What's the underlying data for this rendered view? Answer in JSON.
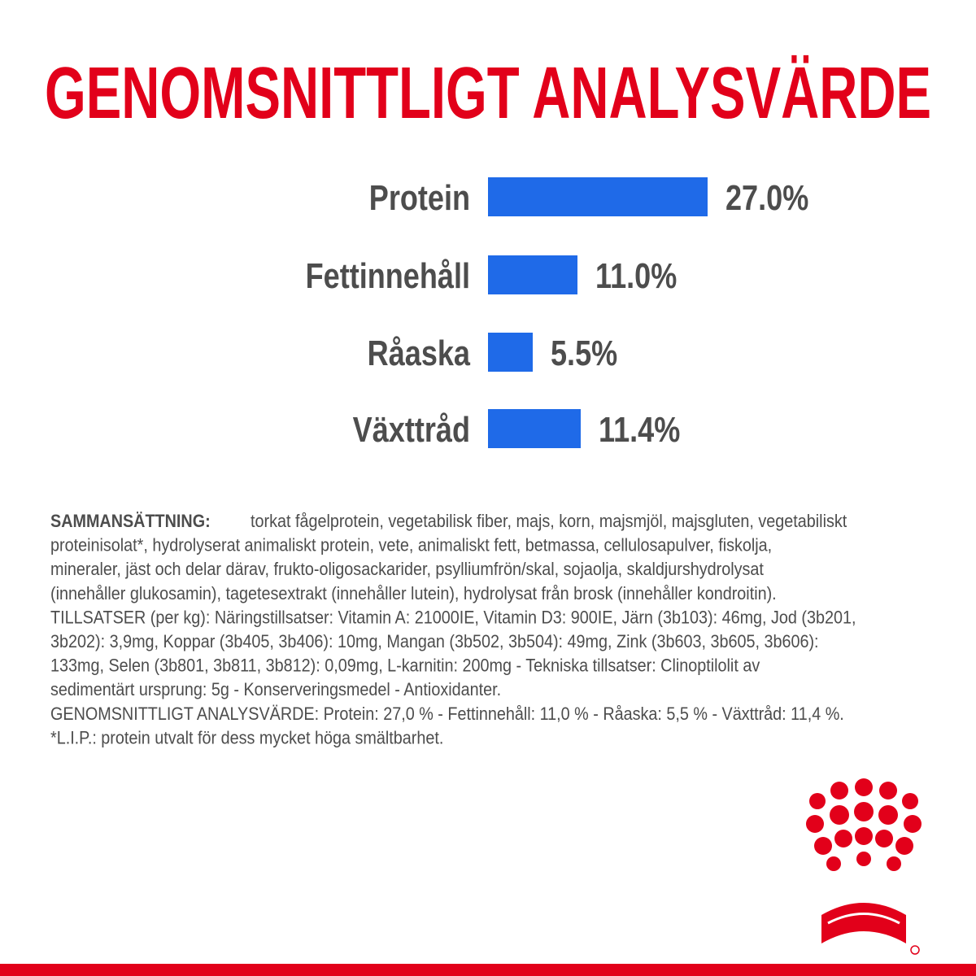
{
  "chart_data": {
    "type": "bar",
    "title": "GENOMSNITTLIGT ANALYSVÄRDE",
    "categories": [
      "Protein",
      "Fettinnehåll",
      "Råaska",
      "Växttråd"
    ],
    "values": [
      27,
      11,
      5.5,
      11.4
    ],
    "value_labels": [
      "27.0%",
      "11.0%",
      "5.5%",
      "11.4%"
    ],
    "color": "#1f6ae8"
  },
  "composition": {
    "label": "SAMMANSÄTTNING:",
    "lines": [
      "torkat fågelprotein, vegetabilisk fiber, majs, korn, majsmjöl, majsgluten, vegetabiliskt",
      "proteinisolat*, hydrolyserat animaliskt protein, vete, animaliskt fett, betmassa, cellulosapulver, fiskolja,",
      "mineraler, jäst och delar därav, frukto-oligosackarider, psylliumfrön/skal, sojaolja, skaldjurshydrolysat",
      "(innehåller glukosamin), tagetesextrakt (innehåller lutein), hydrolysat från brosk (innehåller kondroitin).",
      "TILLSATSER (per kg): Näringstillsatser: Vitamin A: 21000IE, Vitamin D3: 900IE, Järn (3b103): 46mg, Jod (3b201,",
      "3b202): 3,9mg, Koppar (3b405, 3b406): 10mg, Mangan (3b502, 3b504): 49mg, Zink (3b603, 3b605, 3b606):",
      "133mg, Selen (3b801, 3b811, 3b812): 0,09mg, L-karnitin: 200mg - Tekniska tillsatser: Clinoptilolit av",
      "sedimentärt ursprung: 5g - Konserveringsmedel - Antioxidanter.",
      "GENOMSNITTLIGT ANALYSVÄRDE: Protein: 27,0 % - Fettinnehåll: 11,0 % - Råaska: 5,5 % - Växttråd: 11,4 %.",
      "*L.I.P.: protein utvalt för dess mycket höga smältbarhet."
    ]
  }
}
